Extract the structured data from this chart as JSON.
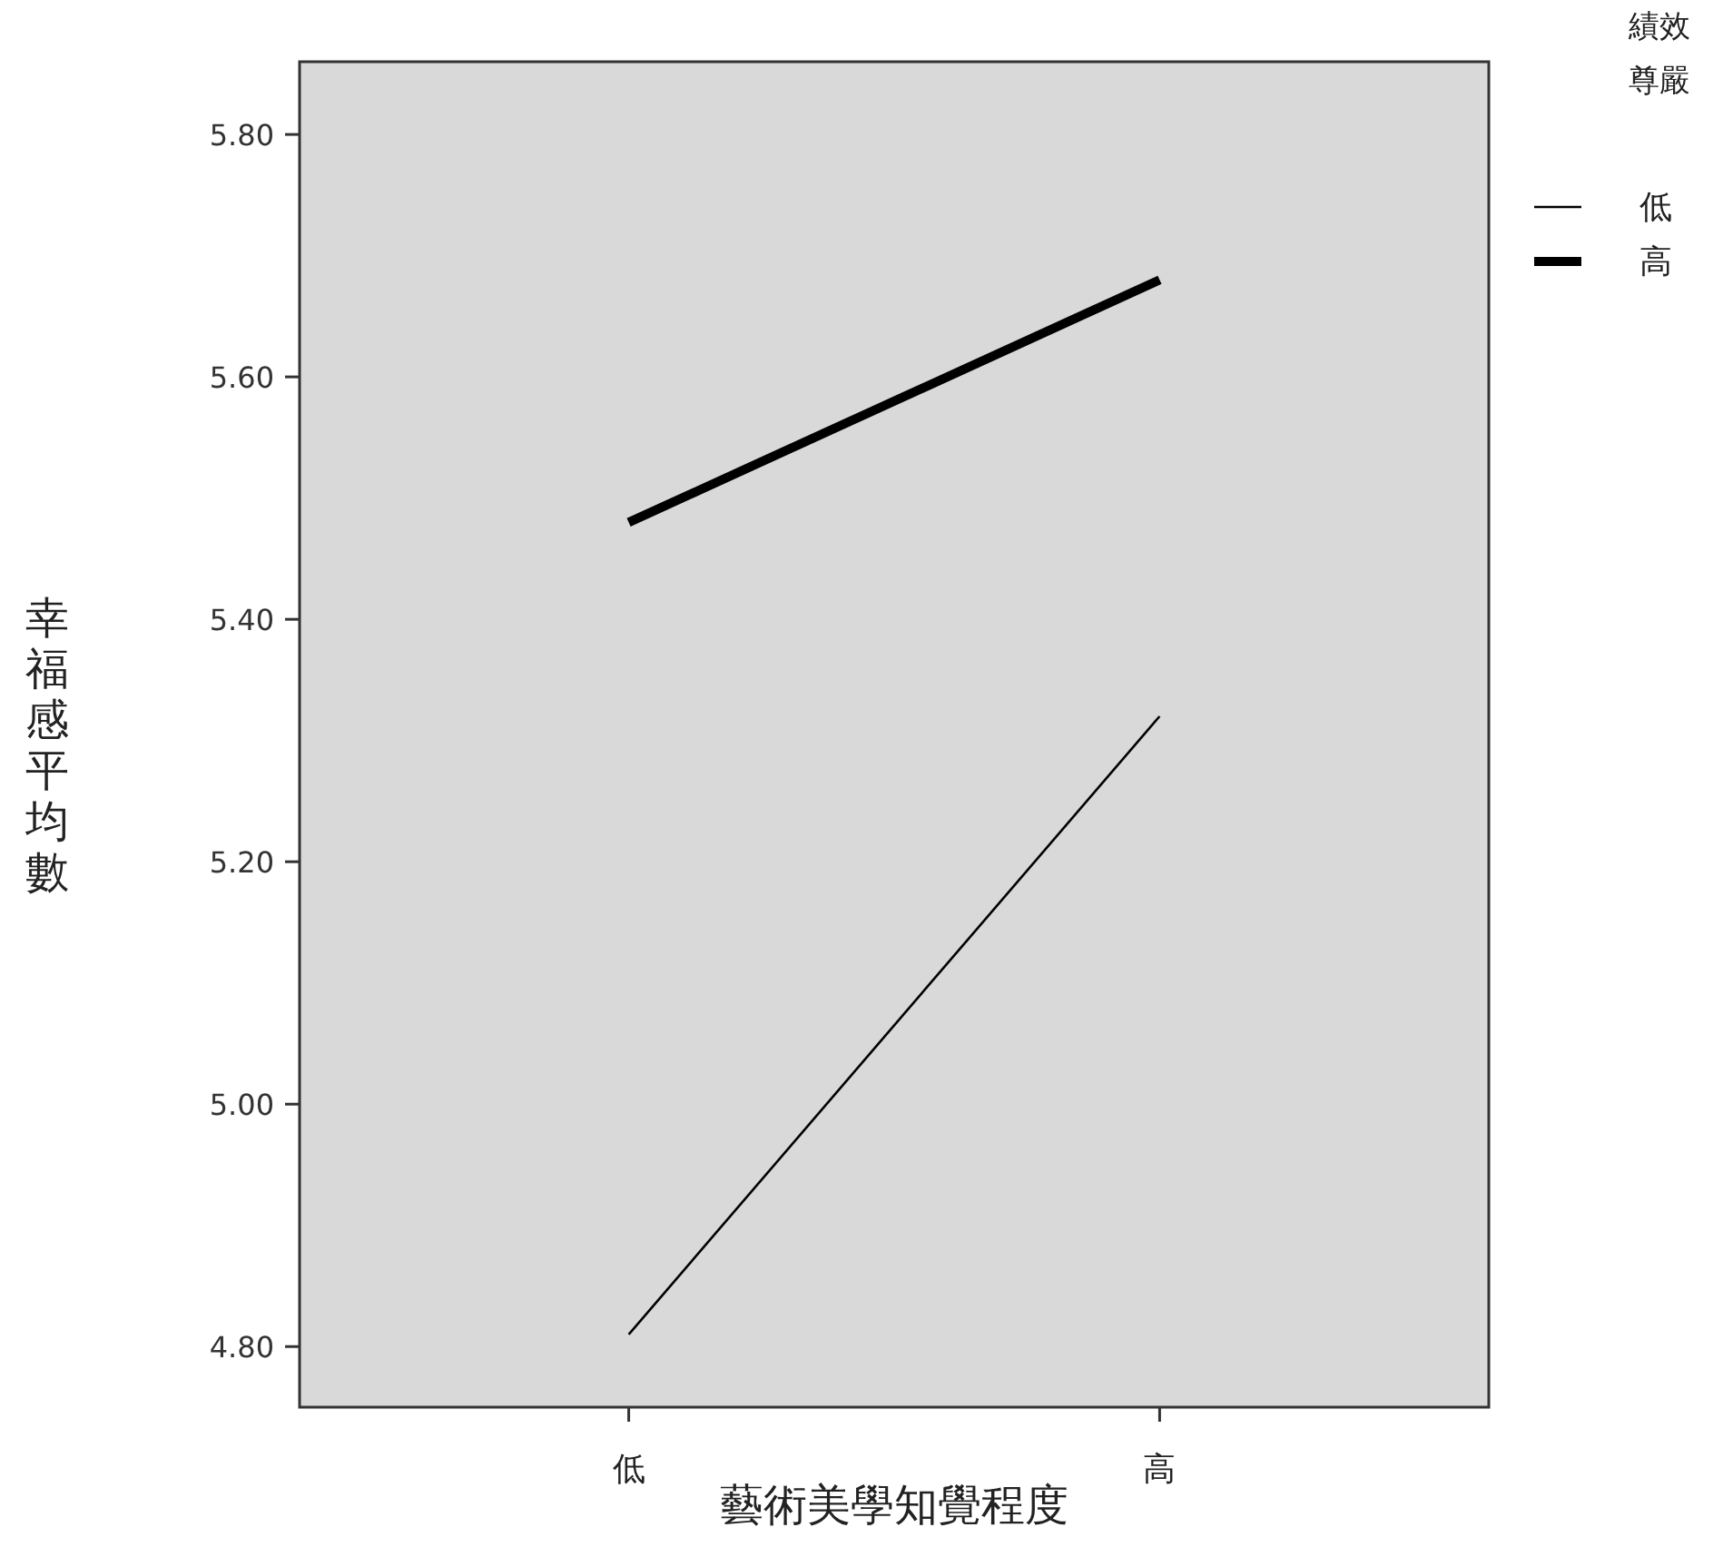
{
  "chart_data": {
    "type": "line",
    "xlabel": "藝術美學知覺程度",
    "ylabel": "幸福感平均數",
    "legend_title": "績效尊嚴",
    "categories": [
      "低",
      "高"
    ],
    "series": [
      {
        "name": "低",
        "color": "#000000",
        "values": [
          4.81,
          5.32
        ]
      },
      {
        "name": "高",
        "color": "#000000",
        "values": [
          5.48,
          5.68
        ]
      }
    ],
    "ylim": [
      4.75,
      5.86
    ],
    "yticks": [
      {
        "value": 4.8,
        "label": "4.80"
      },
      {
        "value": 5.0,
        "label": "5.00"
      },
      {
        "value": 5.2,
        "label": "5.20"
      },
      {
        "value": 5.4,
        "label": "5.40"
      },
      {
        "value": 5.6,
        "label": "5.60"
      },
      {
        "value": 5.8,
        "label": "5.80"
      }
    ],
    "grid": false,
    "legend": "top right",
    "marker": "none",
    "line_style": "solid"
  }
}
